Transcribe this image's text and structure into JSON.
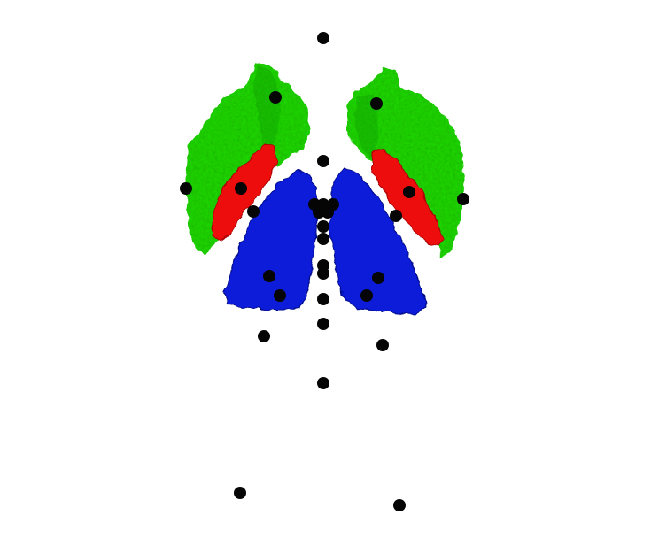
{
  "colors": {
    "background": "#ffffff",
    "structure_outer": "#22dd11",
    "structure_outer_shade": "#119900",
    "structure_inner": "#ee1111",
    "structure_inner_shade": "#aa0000",
    "structure_lower": "#0a1ad8",
    "structure_lower_shade": "#000a88",
    "landmark": "#050505"
  },
  "structures": [
    {
      "name": "left-outer-structure",
      "color": "structure_outer"
    },
    {
      "name": "right-outer-structure",
      "color": "structure_outer"
    },
    {
      "name": "left-inner-structure",
      "color": "structure_inner"
    },
    {
      "name": "right-inner-structure",
      "color": "structure_inner"
    },
    {
      "name": "left-lower-structure",
      "color": "structure_lower"
    },
    {
      "name": "right-lower-structure",
      "color": "structure_lower"
    }
  ],
  "landmark_count": 30
}
